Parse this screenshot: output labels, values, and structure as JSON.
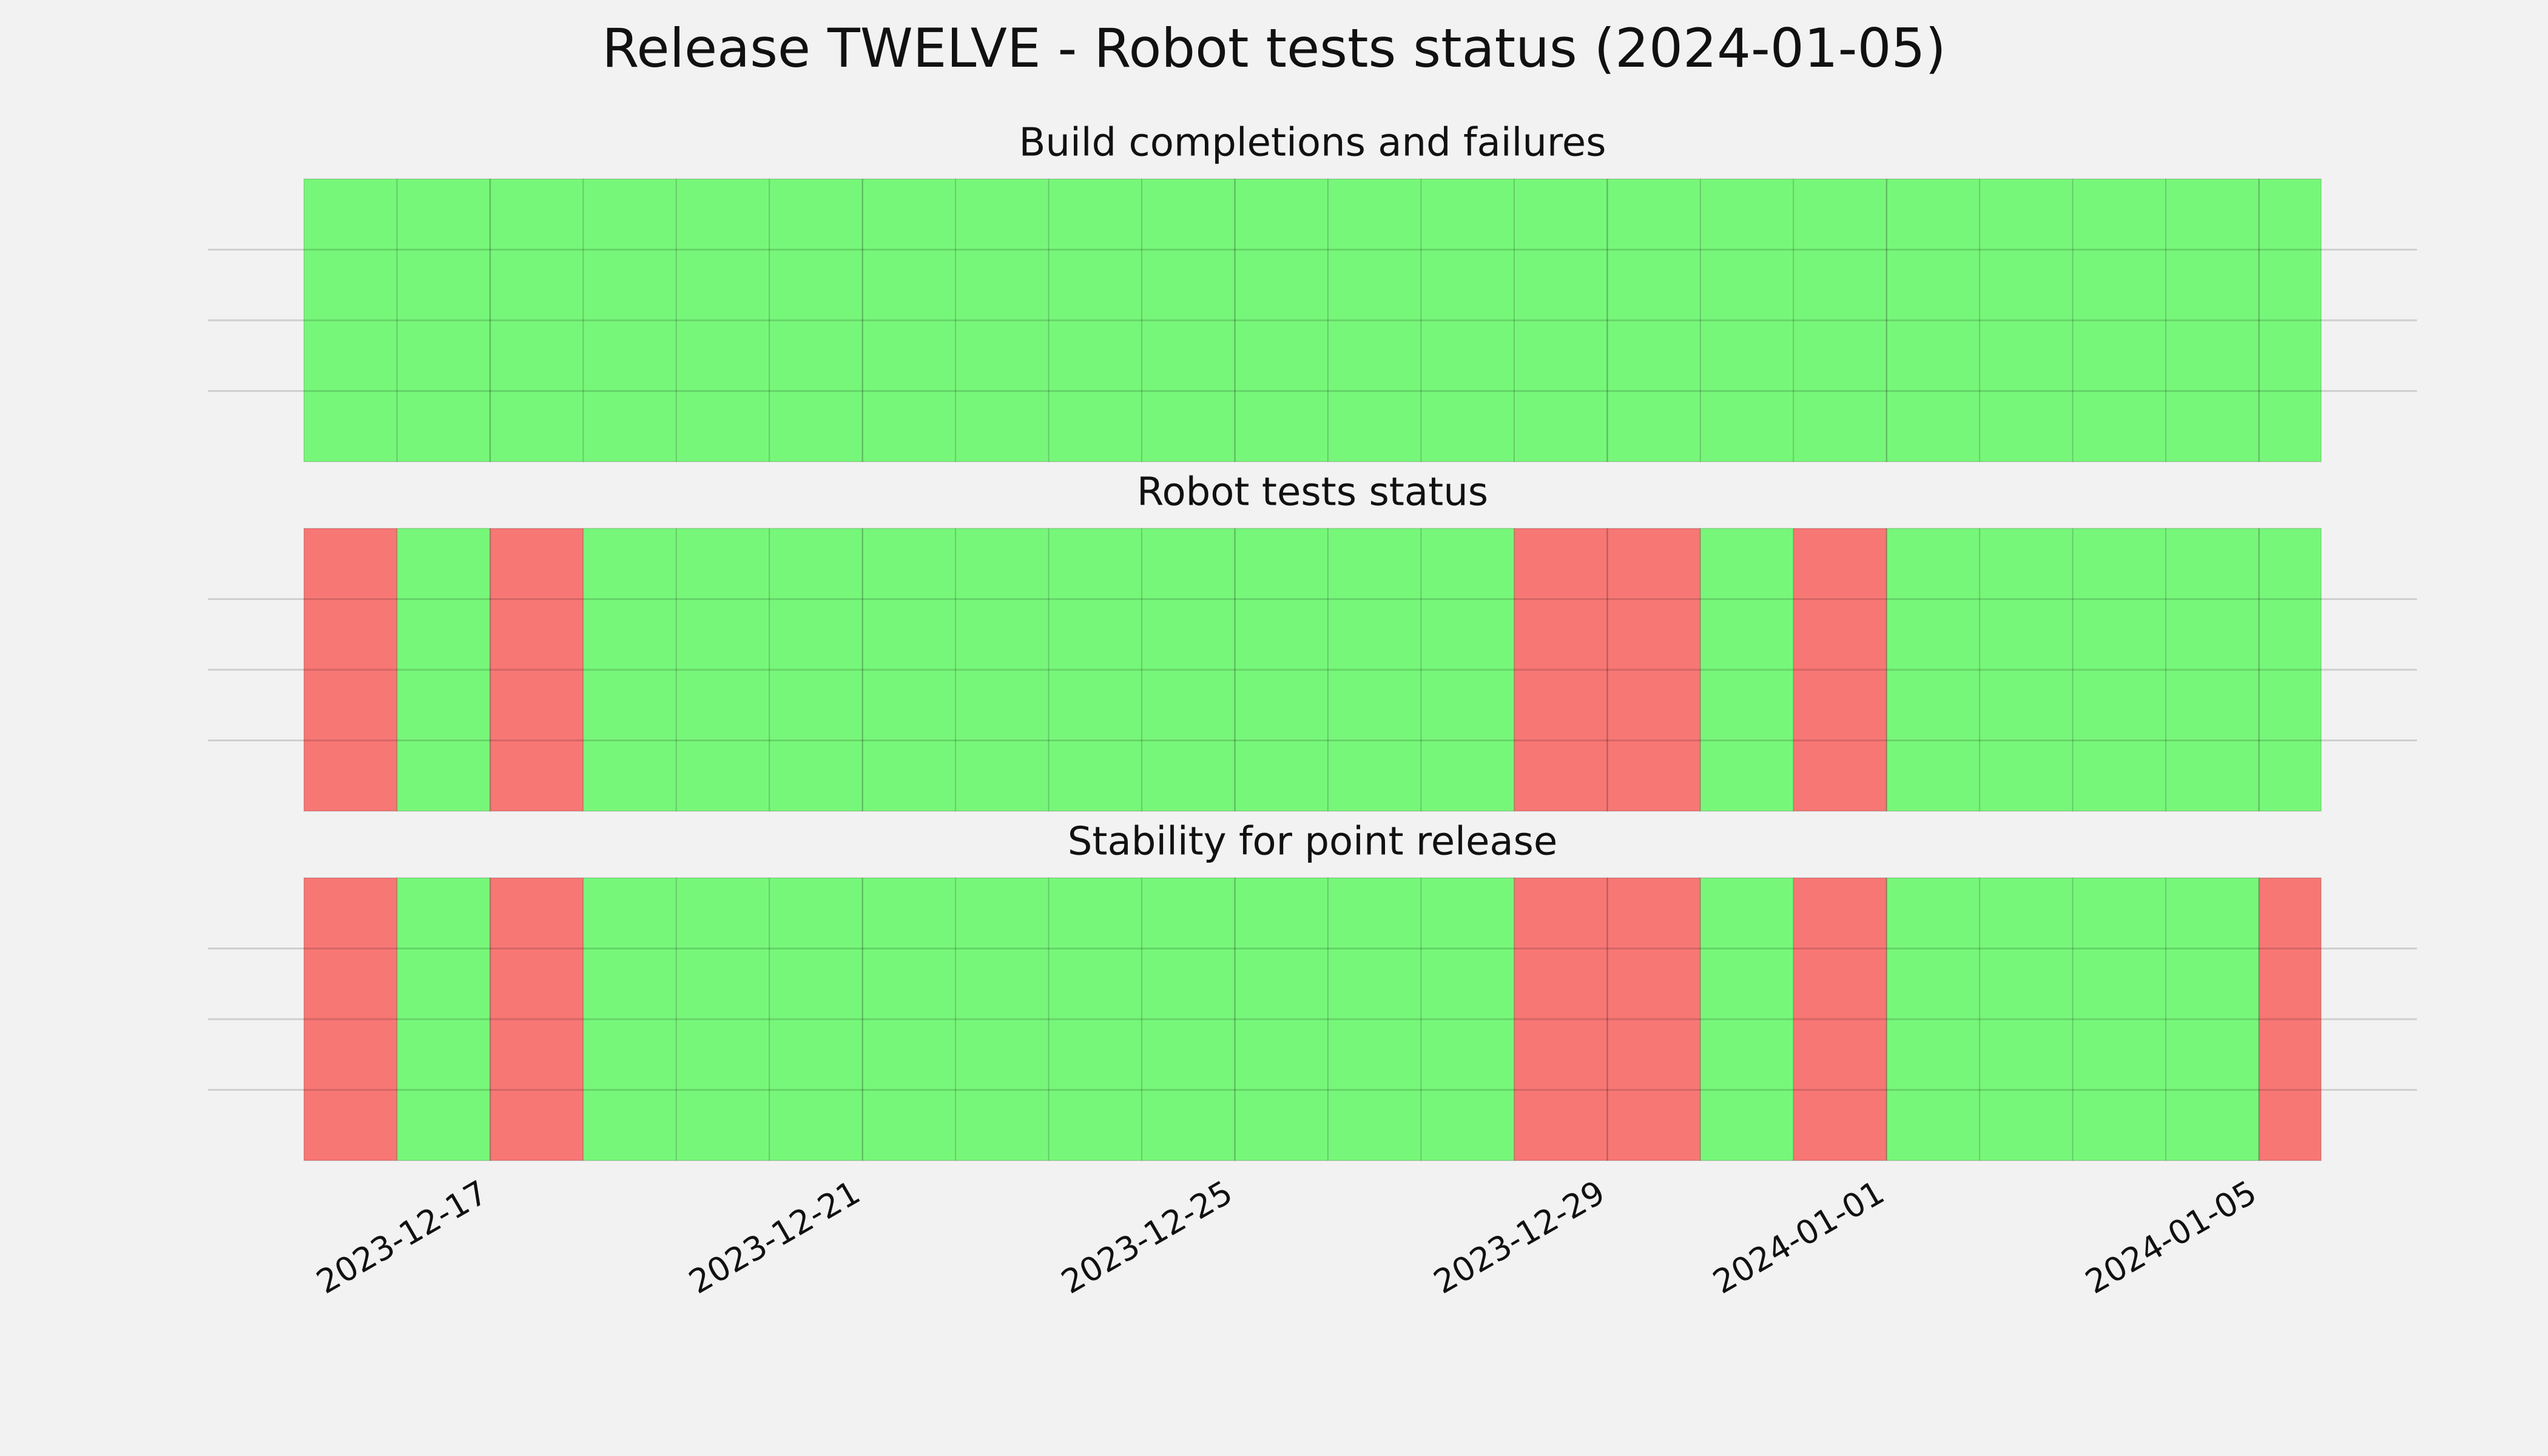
{
  "title": "Release TWELVE - Robot tests status (2024-01-05)",
  "chart_data": [
    {
      "type": "bar",
      "title": "Build completions and failures",
      "x": [
        "2023-12-15",
        "2023-12-16",
        "2023-12-17",
        "2023-12-18",
        "2023-12-19",
        "2023-12-20",
        "2023-12-21",
        "2023-12-22",
        "2023-12-23",
        "2023-12-24",
        "2023-12-25",
        "2023-12-26",
        "2023-12-27",
        "2023-12-28",
        "2023-12-29",
        "2023-12-30",
        "2023-12-31",
        "2024-01-01",
        "2024-01-02",
        "2024-01-03",
        "2024-01-04",
        "2024-01-05"
      ],
      "values": [
        1,
        1,
        1,
        1,
        1,
        1,
        1,
        1,
        1,
        1,
        1,
        1,
        1,
        1,
        1,
        1,
        1,
        1,
        1,
        1,
        1,
        1
      ],
      "colors": [
        "#77f77a",
        "#77f77a",
        "#77f77a",
        "#77f77a",
        "#77f77a",
        "#77f77a",
        "#77f77a",
        "#77f77a",
        "#77f77a",
        "#77f77a",
        "#77f77a",
        "#77f77a",
        "#77f77a",
        "#77f77a",
        "#77f77a",
        "#77f77a",
        "#77f77a",
        "#77f77a",
        "#77f77a",
        "#77f77a",
        "#77f77a",
        "#77f77a"
      ],
      "xlim": [
        "2023-12-15",
        "2024-01-05T16:00"
      ],
      "xticks": [
        "2023-12-17",
        "2023-12-21",
        "2023-12-25",
        "2023-12-29",
        "2024-01-01",
        "2024-01-05"
      ],
      "ylim": [
        0,
        1
      ],
      "yticks": [
        0.25,
        0.5,
        0.75
      ],
      "grid": true
    },
    {
      "type": "bar",
      "title": "Robot tests status",
      "x": [
        "2023-12-15",
        "2023-12-16",
        "2023-12-17",
        "2023-12-18",
        "2023-12-19",
        "2023-12-20",
        "2023-12-21",
        "2023-12-22",
        "2023-12-23",
        "2023-12-24",
        "2023-12-25",
        "2023-12-26",
        "2023-12-27",
        "2023-12-28",
        "2023-12-29",
        "2023-12-30",
        "2023-12-31",
        "2024-01-01",
        "2024-01-02",
        "2024-01-03",
        "2024-01-04",
        "2024-01-05"
      ],
      "values": [
        1,
        1,
        1,
        1,
        1,
        1,
        1,
        1,
        1,
        1,
        1,
        1,
        1,
        1,
        1,
        1,
        1,
        1,
        1,
        1,
        1,
        1
      ],
      "colors": [
        "#f77775",
        "#77f77a",
        "#f77775",
        "#77f77a",
        "#77f77a",
        "#77f77a",
        "#77f77a",
        "#77f77a",
        "#77f77a",
        "#77f77a",
        "#77f77a",
        "#77f77a",
        "#77f77a",
        "#f77775",
        "#f77775",
        "#77f77a",
        "#f77775",
        "#77f77a",
        "#77f77a",
        "#77f77a",
        "#77f77a",
        "#77f77a"
      ],
      "xlim": [
        "2023-12-15",
        "2024-01-05T16:00"
      ],
      "xticks": [
        "2023-12-17",
        "2023-12-21",
        "2023-12-25",
        "2023-12-29",
        "2024-01-01",
        "2024-01-05"
      ],
      "ylim": [
        0,
        1
      ],
      "yticks": [
        0.25,
        0.5,
        0.75
      ],
      "grid": true
    },
    {
      "type": "bar",
      "title": "Stability for point release",
      "x": [
        "2023-12-15",
        "2023-12-16",
        "2023-12-17",
        "2023-12-18",
        "2023-12-19",
        "2023-12-20",
        "2023-12-21",
        "2023-12-22",
        "2023-12-23",
        "2023-12-24",
        "2023-12-25",
        "2023-12-26",
        "2023-12-27",
        "2023-12-28",
        "2023-12-29",
        "2023-12-30",
        "2023-12-31",
        "2024-01-01",
        "2024-01-02",
        "2024-01-03",
        "2024-01-04",
        "2024-01-05"
      ],
      "values": [
        1,
        1,
        1,
        1,
        1,
        1,
        1,
        1,
        1,
        1,
        1,
        1,
        1,
        1,
        1,
        1,
        1,
        1,
        1,
        1,
        1,
        1
      ],
      "colors": [
        "#f77775",
        "#77f77a",
        "#f77775",
        "#77f77a",
        "#77f77a",
        "#77f77a",
        "#77f77a",
        "#77f77a",
        "#77f77a",
        "#77f77a",
        "#77f77a",
        "#77f77a",
        "#77f77a",
        "#f77775",
        "#f77775",
        "#77f77a",
        "#f77775",
        "#77f77a",
        "#77f77a",
        "#77f77a",
        "#77f77a",
        "#f77775"
      ],
      "xlim": [
        "2023-12-15",
        "2024-01-05T16:00"
      ],
      "xticks": [
        "2023-12-17",
        "2023-12-21",
        "2023-12-25",
        "2023-12-29",
        "2024-01-01",
        "2024-01-05"
      ],
      "ylim": [
        0,
        1
      ],
      "yticks": [
        0.25,
        0.5,
        0.75
      ],
      "grid": true,
      "xtick_labels": true
    }
  ]
}
